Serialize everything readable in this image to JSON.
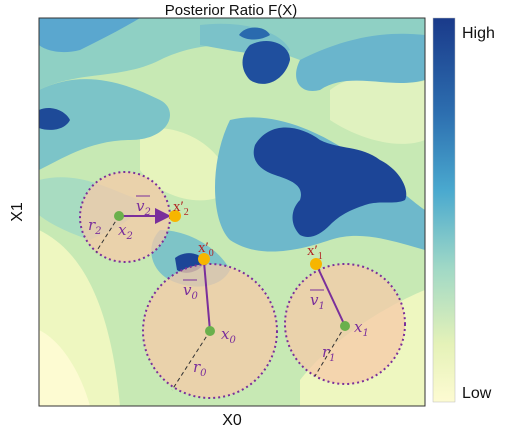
{
  "title": "Posterior Ratio F(X)",
  "axes": {
    "xlabel": "X0",
    "ylabel": "X1"
  },
  "colorbar": {
    "high_label": "High",
    "low_label": "Low",
    "colors": [
      "#1a3a8a",
      "#3a8fc4",
      "#9fd3c8",
      "#fdfbd2"
    ]
  },
  "labels": {
    "x0": "x",
    "x0_sub": "0",
    "x1": "x",
    "x1_sub": "1",
    "x2": "x",
    "x2_sub": "2",
    "x0p": "x′",
    "x0p_sub": "0",
    "x1p": "x′",
    "x1p_sub": "1",
    "x2p": "x′",
    "x2p_sub": "2",
    "v0": "v",
    "v0_sub": "0",
    "v1": "v",
    "v1_sub": "1",
    "v2": "v",
    "v2_sub": "2",
    "r0": "r",
    "r0_sub": "0",
    "r1": "r",
    "r1_sub": "1",
    "r2": "r",
    "r2_sub": "2"
  },
  "colors": {
    "point_green": "#6ab04c",
    "point_yellow": "#f7b500",
    "arrow_purple": "#7a2f9b",
    "circle_fill": "#f6caa8",
    "prime_red": "#b22222"
  }
}
